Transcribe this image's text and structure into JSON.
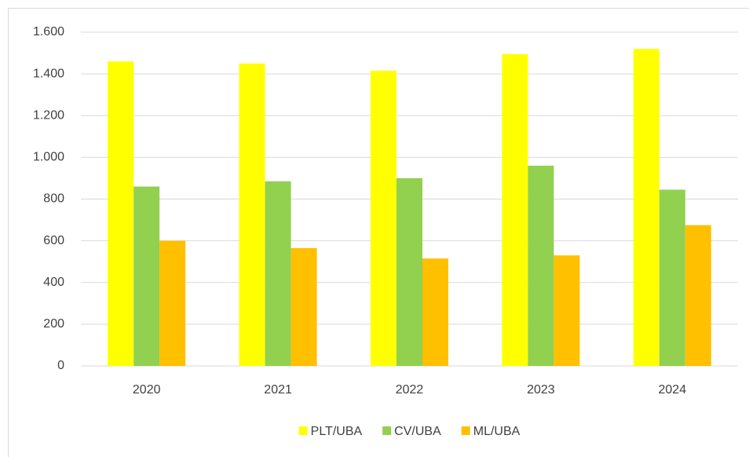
{
  "chart_data": {
    "type": "bar",
    "categories": [
      "2020",
      "2021",
      "2022",
      "2023",
      "2024"
    ],
    "series": [
      {
        "name": "PLT/UBA",
        "color": "#ffff00",
        "values": [
          1460,
          1450,
          1415,
          1495,
          1520
        ]
      },
      {
        "name": "CV/UBA",
        "color": "#92d050",
        "values": [
          860,
          885,
          900,
          960,
          845
        ]
      },
      {
        "name": "ML/UBA",
        "color": "#ffc000",
        "values": [
          600,
          565,
          515,
          530,
          675
        ]
      }
    ],
    "ylim": [
      0,
      1600
    ],
    "yticks": [
      0,
      200,
      400,
      600,
      800,
      {
        "value": 1000,
        "label": "1.000"
      },
      {
        "value": 1200,
        "label": "1.200"
      },
      {
        "value": 1400,
        "label": "1.400"
      },
      {
        "value": 1600,
        "label": "1.600"
      }
    ],
    "grid": true,
    "legend": "bottom"
  }
}
